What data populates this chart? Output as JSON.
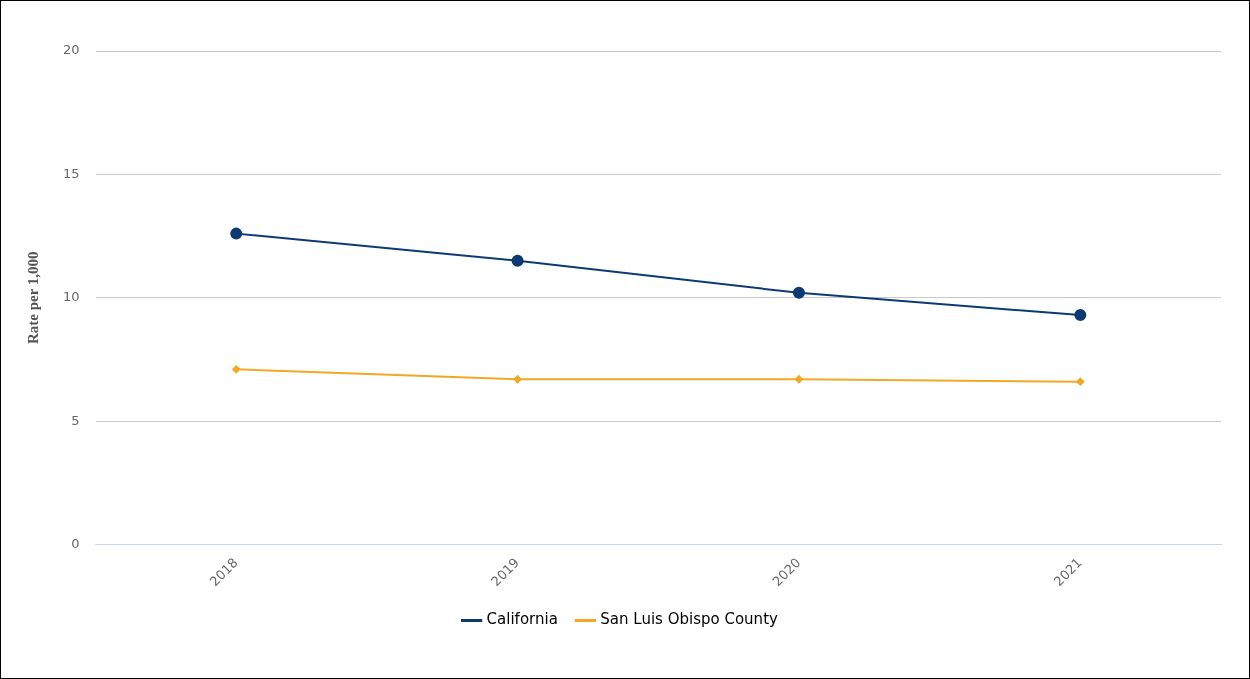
{
  "chart_data": {
    "type": "line",
    "ylabel": "Rate per 1,000",
    "categories": [
      "2018",
      "2019",
      "2020",
      "2021"
    ],
    "series": [
      {
        "name": "California",
        "color": "#0d3a75",
        "values": [
          12.6,
          11.5,
          10.2,
          9.3
        ],
        "marker": "circle"
      },
      {
        "name": "San Luis Obispo County",
        "color": "#f2a825",
        "values": [
          7.1,
          6.7,
          6.7,
          6.6
        ],
        "marker": "diamond"
      }
    ],
    "ylim": [
      0,
      20
    ],
    "yticks": [
      0,
      5,
      10,
      15,
      20
    ],
    "grid": "y",
    "legend": "bottom"
  }
}
